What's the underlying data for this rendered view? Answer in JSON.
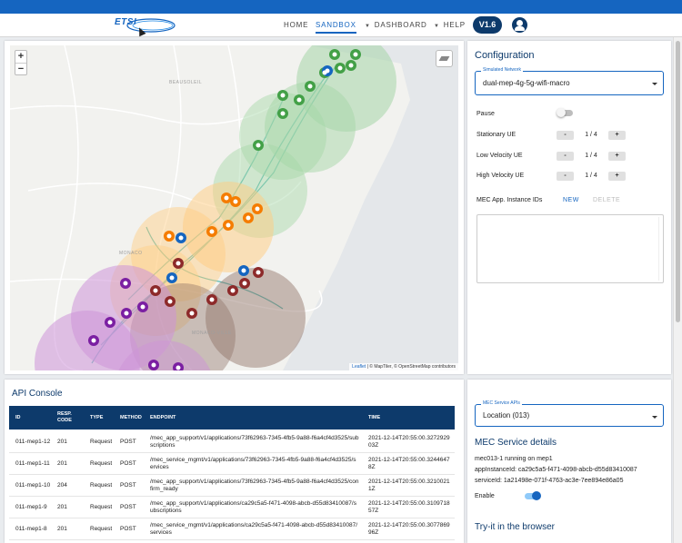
{
  "navbar": {
    "logo": "ETSI",
    "items": [
      "HOME",
      "SANDBOX",
      "DASHBOARD",
      "HELP"
    ],
    "version": "V1.6"
  },
  "map": {
    "zoom_in": "+",
    "zoom_out": "−",
    "attribution_link": "Leaflet",
    "attribution_text": " | © MapTiler, © OpenStreetMap contributors",
    "labels": [
      "BEAUSOLEIL",
      "MONACO",
      "MONACO-VILLE"
    ],
    "zones": [
      {
        "color": "#a5d6a7"
      },
      {
        "color": "#ffcc80"
      },
      {
        "color": "#ce93d8"
      },
      {
        "color": "#a1887f"
      }
    ]
  },
  "configuration": {
    "title": "Configuration",
    "network_label": "Simulated Network",
    "network_value": "dual-mep-4g-5g-wifi-macro",
    "pause_label": "Pause",
    "stationary_label": "Stationary UE",
    "stationary_value": "1 / 4",
    "low_velocity_label": "Low Velocity UE",
    "low_velocity_value": "1 / 4",
    "high_velocity_label": "High Velocity UE",
    "high_velocity_value": "1 / 4",
    "minus": "-",
    "plus": "+",
    "mec_ids_label": "MEC App. Instance IDs",
    "new_label": "NEW",
    "delete_label": "DELETE"
  },
  "console": {
    "title": "API Console",
    "headers": [
      "ID",
      "RESP. CODE",
      "TYPE",
      "METHOD",
      "ENDPOINT",
      "TIME"
    ],
    "rows": [
      [
        "011-mep1-12",
        "201",
        "Request",
        "POST",
        "/mec_app_support/v1/applications/73f62963-7345-4fb5-9a88-f6a4cf4d3525/subscriptions",
        "2021-12-14T20:55:00.327292903Z"
      ],
      [
        "011-mep1-11",
        "201",
        "Request",
        "POST",
        "/mec_service_mgmt/v1/applications/73f62963-7345-4fb5-9a88-f6a4cf4d3525/services",
        "2021-12-14T20:55:00.32446478Z"
      ],
      [
        "011-mep1-10",
        "204",
        "Request",
        "POST",
        "/mec_app_support/v1/applications/73f62963-7345-4fb5-9a88-f6a4cf4d3525/confirm_ready",
        "2021-12-14T20:55:00.32100211Z"
      ],
      [
        "011-mep1-9",
        "201",
        "Request",
        "POST",
        "/mec_app_support/v1/applications/ca29c5a5-f471-4098-abcb-d55d83410087/subscriptions",
        "2021-12-14T20:55:00.310971857Z"
      ],
      [
        "011-mep1-8",
        "201",
        "Request",
        "POST",
        "/mec_service_mgmt/v1/applications/ca29c5a5-f471-4098-abcb-d55d83410087/services",
        "2021-12-14T20:55:00.307786996Z"
      ]
    ]
  },
  "service": {
    "apis_label": "MEC Service APIs",
    "apis_value": "Location (013)",
    "details_title": "MEC Service details",
    "running": "mec013-1 running on mep1",
    "app_instance": "appInstanceId: ca29c5a5-f471-4098-abcb-d55d83410087",
    "service_id": "serviceId: 1a21498e-071f-4763-ac3e-7ee894e86a05",
    "enable_label": "Enable",
    "try_title": "Try-it in the browser"
  },
  "colors": {
    "primary": "#1565c0",
    "dark": "#0d3a6b",
    "poa_green": "#43a047",
    "poa_orange": "#f57c00",
    "poa_purple": "#7b1fa2",
    "poa_brown": "#8d2a2a"
  }
}
